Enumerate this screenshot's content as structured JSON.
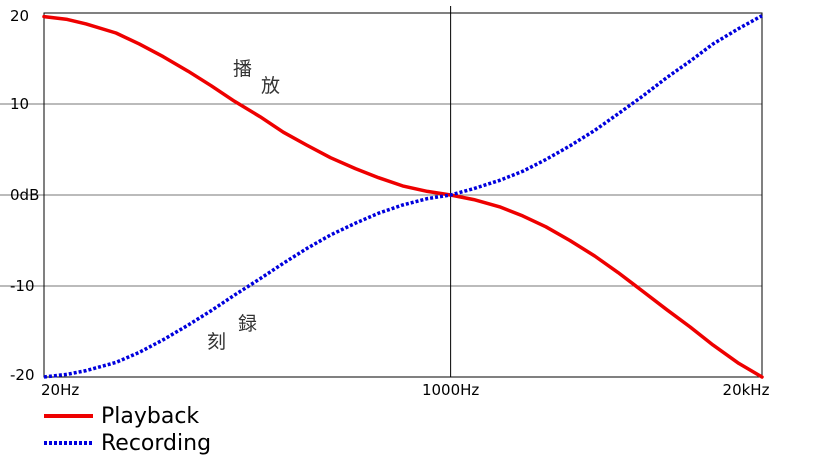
{
  "chart_data": {
    "type": "line",
    "x_axis": {
      "scale": "log",
      "range_hz": [
        20,
        20000
      ],
      "tick_values_hz": [
        20,
        1000,
        20000
      ],
      "tick_labels": [
        "20Hz",
        "1000Hz",
        "20kHz"
      ]
    },
    "y_axis": {
      "unit": "dB",
      "range": [
        -20,
        20
      ],
      "tick_values": [
        20,
        10,
        0,
        -10,
        -20
      ],
      "tick_labels": [
        "20",
        "10",
        "0dB",
        "-10",
        "-20"
      ]
    },
    "grid": true,
    "series": [
      {
        "name": "Playback",
        "color": "#ee0000",
        "style": "solid",
        "x_hz": [
          20,
          25,
          30,
          40,
          50,
          63,
          80,
          100,
          125,
          160,
          200,
          250,
          315,
          400,
          500,
          630,
          800,
          1000,
          1250,
          1600,
          2000,
          2500,
          3150,
          4000,
          5000,
          6300,
          8000,
          10000,
          12500,
          16000,
          20000
        ],
        "y_db": [
          19.6,
          19.3,
          18.8,
          17.8,
          16.6,
          15.2,
          13.6,
          12.0,
          10.3,
          8.6,
          6.9,
          5.5,
          4.1,
          2.9,
          1.9,
          1.0,
          0.4,
          0.0,
          -0.5,
          -1.3,
          -2.3,
          -3.5,
          -5.0,
          -6.7,
          -8.5,
          -10.5,
          -12.6,
          -14.5,
          -16.5,
          -18.5,
          -20.0
        ]
      },
      {
        "name": "Recording",
        "color": "#0000dd",
        "style": "dotted",
        "x_hz": [
          20,
          25,
          30,
          40,
          50,
          63,
          80,
          100,
          125,
          160,
          200,
          250,
          315,
          400,
          500,
          630,
          800,
          1000,
          1250,
          1600,
          2000,
          2500,
          3150,
          4000,
          5000,
          6300,
          8000,
          10000,
          12500,
          16000,
          20000
        ],
        "y_db": [
          -20.0,
          -19.7,
          -19.3,
          -18.4,
          -17.3,
          -15.9,
          -14.3,
          -12.7,
          -11.0,
          -9.2,
          -7.5,
          -5.9,
          -4.4,
          -3.1,
          -2.0,
          -1.1,
          -0.4,
          0.0,
          0.7,
          1.6,
          2.6,
          3.9,
          5.4,
          7.1,
          8.9,
          10.8,
          12.9,
          14.7,
          16.6,
          18.3,
          19.7
        ]
      }
    ],
    "annotations": [
      {
        "text": "播",
        "series": "Playback"
      },
      {
        "text": "放",
        "series": "Playback"
      },
      {
        "text": "録",
        "series": "Recording"
      },
      {
        "text": "刻",
        "series": "Recording"
      }
    ],
    "legend": {
      "placement": "bottom-left",
      "entries": [
        "Playback",
        "Recording"
      ]
    }
  }
}
